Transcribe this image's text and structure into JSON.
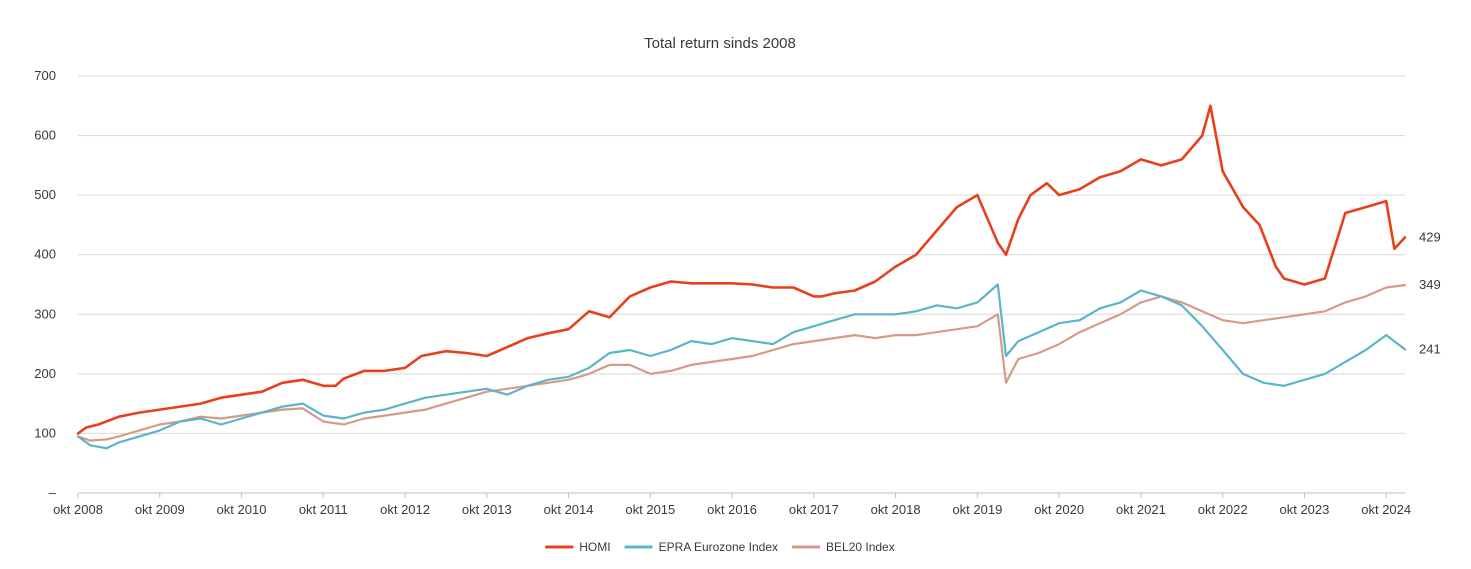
{
  "chart_data": {
    "type": "line",
    "title": "Total return sinds 2008",
    "xlabel": "",
    "ylabel": "",
    "ylim": [
      0,
      700
    ],
    "y_ticks": [
      "–",
      "100",
      "200",
      "300",
      "400",
      "500",
      "600",
      "700"
    ],
    "y_tick_values": [
      0,
      100,
      200,
      300,
      400,
      500,
      600,
      700
    ],
    "x_ticks": [
      "okt 2008",
      "okt 2009",
      "okt 2010",
      "okt 2011",
      "okt 2012",
      "okt 2013",
      "okt 2014",
      "okt 2015",
      "okt 2016",
      "okt 2017",
      "okt 2018",
      "okt 2019",
      "okt 2020",
      "okt 2021",
      "okt 2022",
      "okt 2023",
      "okt 2024"
    ],
    "x_tick_values": [
      2008.75,
      2009.75,
      2010.75,
      2011.75,
      2012.75,
      2013.75,
      2014.75,
      2015.75,
      2016.75,
      2017.75,
      2018.75,
      2019.75,
      2020.75,
      2021.75,
      2022.75,
      2023.75,
      2024.75
    ],
    "xlim": [
      2008.75,
      2024.98
    ],
    "grid": "horizontal",
    "legend": "bottom",
    "series": [
      {
        "name": "HOMI",
        "color": "#e8401c",
        "end_label": "429",
        "x": [
          2008.75,
          2008.85,
          2009.0,
          2009.25,
          2009.5,
          2009.75,
          2010.0,
          2010.25,
          2010.5,
          2010.75,
          2011.0,
          2011.25,
          2011.5,
          2011.75,
          2011.9,
          2012.0,
          2012.25,
          2012.5,
          2012.75,
          2012.95,
          2013.25,
          2013.5,
          2013.75,
          2014.0,
          2014.25,
          2014.5,
          2014.75,
          2015.0,
          2015.25,
          2015.5,
          2015.75,
          2016.0,
          2016.25,
          2016.5,
          2016.75,
          2017.0,
          2017.25,
          2017.5,
          2017.75,
          2017.85,
          2018.0,
          2018.25,
          2018.5,
          2018.75,
          2019.0,
          2019.25,
          2019.5,
          2019.75,
          2020.0,
          2020.1,
          2020.25,
          2020.4,
          2020.5,
          2020.6,
          2020.75,
          2021.0,
          2021.25,
          2021.5,
          2021.75,
          2022.0,
          2022.25,
          2022.5,
          2022.6,
          2022.75,
          2023.0,
          2023.2,
          2023.4,
          2023.5,
          2023.75,
          2024.0,
          2024.25,
          2024.5,
          2024.75,
          2024.85,
          2024.98
        ],
        "y": [
          100,
          110,
          115,
          128,
          135,
          140,
          145,
          150,
          160,
          165,
          170,
          185,
          190,
          180,
          180,
          192,
          205,
          205,
          210,
          230,
          238,
          235,
          230,
          245,
          260,
          268,
          275,
          305,
          295,
          330,
          345,
          355,
          352,
          352,
          352,
          350,
          345,
          345,
          330,
          330,
          335,
          340,
          355,
          380,
          400,
          440,
          480,
          500,
          420,
          400,
          460,
          500,
          510,
          520,
          500,
          510,
          530,
          540,
          560,
          550,
          560,
          600,
          650,
          540,
          480,
          450,
          380,
          360,
          350,
          360,
          470,
          480,
          490,
          410,
          429
        ]
      },
      {
        "name": "EPRA Eurozone Index",
        "color": "#5bb5c8",
        "end_label": "241",
        "x": [
          2008.75,
          2008.9,
          2009.1,
          2009.25,
          2009.5,
          2009.75,
          2010.0,
          2010.25,
          2010.5,
          2010.75,
          2011.0,
          2011.25,
          2011.5,
          2011.75,
          2012.0,
          2012.25,
          2012.5,
          2012.75,
          2013.0,
          2013.25,
          2013.5,
          2013.75,
          2014.0,
          2014.25,
          2014.5,
          2014.75,
          2015.0,
          2015.25,
          2015.5,
          2015.75,
          2016.0,
          2016.25,
          2016.5,
          2016.75,
          2017.0,
          2017.25,
          2017.5,
          2017.75,
          2018.0,
          2018.25,
          2018.5,
          2018.75,
          2019.0,
          2019.25,
          2019.5,
          2019.75,
          2020.0,
          2020.1,
          2020.25,
          2020.5,
          2020.75,
          2021.0,
          2021.25,
          2021.5,
          2021.75,
          2022.0,
          2022.25,
          2022.5,
          2022.75,
          2023.0,
          2023.25,
          2023.5,
          2023.75,
          2024.0,
          2024.25,
          2024.5,
          2024.75,
          2024.98
        ],
        "y": [
          95,
          80,
          75,
          85,
          95,
          105,
          120,
          125,
          115,
          125,
          135,
          145,
          150,
          130,
          125,
          135,
          140,
          150,
          160,
          165,
          170,
          175,
          165,
          180,
          190,
          195,
          210,
          235,
          240,
          230,
          240,
          255,
          250,
          260,
          255,
          250,
          270,
          280,
          290,
          300,
          300,
          300,
          305,
          315,
          310,
          320,
          350,
          230,
          255,
          270,
          285,
          290,
          310,
          320,
          340,
          330,
          315,
          280,
          240,
          200,
          185,
          180,
          190,
          200,
          220,
          240,
          265,
          241
        ]
      },
      {
        "name": "BEL20 Index",
        "color": "#d89a88",
        "end_label": "349",
        "x": [
          2008.75,
          2008.9,
          2009.1,
          2009.25,
          2009.5,
          2009.75,
          2010.0,
          2010.25,
          2010.5,
          2010.75,
          2011.0,
          2011.25,
          2011.5,
          2011.75,
          2012.0,
          2012.25,
          2012.5,
          2012.75,
          2013.0,
          2013.25,
          2013.5,
          2013.75,
          2014.0,
          2014.25,
          2014.5,
          2014.75,
          2015.0,
          2015.25,
          2015.5,
          2015.75,
          2016.0,
          2016.25,
          2016.5,
          2016.75,
          2017.0,
          2017.25,
          2017.5,
          2017.75,
          2018.0,
          2018.25,
          2018.5,
          2018.75,
          2019.0,
          2019.25,
          2019.5,
          2019.75,
          2020.0,
          2020.1,
          2020.25,
          2020.5,
          2020.75,
          2021.0,
          2021.25,
          2021.5,
          2021.75,
          2022.0,
          2022.25,
          2022.5,
          2022.75,
          2023.0,
          2023.25,
          2023.5,
          2023.75,
          2024.0,
          2024.25,
          2024.5,
          2024.75,
          2024.98
        ],
        "y": [
          95,
          88,
          90,
          95,
          105,
          115,
          120,
          128,
          125,
          130,
          135,
          140,
          142,
          120,
          115,
          125,
          130,
          135,
          140,
          150,
          160,
          170,
          175,
          180,
          185,
          190,
          200,
          215,
          215,
          200,
          205,
          215,
          220,
          225,
          230,
          240,
          250,
          255,
          260,
          265,
          260,
          265,
          265,
          270,
          275,
          280,
          300,
          185,
          225,
          235,
          250,
          270,
          285,
          300,
          320,
          330,
          320,
          305,
          290,
          285,
          290,
          295,
          300,
          305,
          320,
          330,
          345,
          349
        ]
      }
    ]
  }
}
